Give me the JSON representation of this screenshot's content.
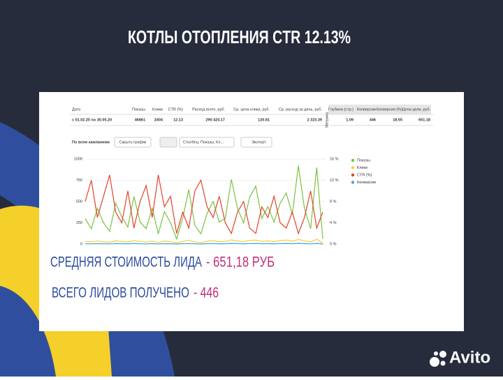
{
  "title": "КОТЛЫ ОТОПЛЕНИЯ CTR 12.13%",
  "table": {
    "date_header": "Дата",
    "headers": [
      "Показы",
      "Клики",
      "CTR (%)",
      "Расход всего, руб.",
      "Ср. цена клика, руб.",
      "Ср. расход за день, руб.",
      "Глубина (стр.)",
      "Конверсии",
      "Конверсия (%)",
      "Цена цели, руб."
    ],
    "metrika_header": "Метрика",
    "date": "с 01.02.20 по 30.05.20",
    "row": [
      "46861",
      "2404",
      "12.13",
      "290 424.17",
      "120.81",
      "2 323.39",
      "1.09",
      "446",
      "18.55",
      "651.18"
    ]
  },
  "toolbar": {
    "scope": "По всем кампаниям",
    "hide_chart": "Скрыть график",
    "columns": "Столбец: Показы, Кл...",
    "export": "Экспорт"
  },
  "chart_data": {
    "type": "line",
    "ylim": [
      0,
      1000
    ],
    "yticks": [
      0,
      250,
      500,
      750,
      1000
    ],
    "y2lim": [
      0,
      16
    ],
    "y2ticks": [
      {
        "value": 0,
        "label": "0 %"
      },
      {
        "value": 4,
        "label": "4 %"
      },
      {
        "value": 8,
        "label": "8 %"
      },
      {
        "value": 12,
        "label": "12 %"
      },
      {
        "value": 16,
        "label": "16 %"
      }
    ],
    "legend": "right",
    "grid": true,
    "series": [
      {
        "name": "Показы",
        "color": "#7cc242",
        "values": [
          300,
          180,
          420,
          250,
          150,
          480,
          320,
          200,
          560,
          260,
          180,
          420,
          120,
          380,
          250,
          60,
          300,
          640,
          220,
          120,
          360,
          500,
          260,
          300,
          760,
          420,
          250,
          550,
          680,
          300,
          440,
          260,
          480,
          600,
          350,
          920,
          420,
          180,
          900,
          60
        ]
      },
      {
        "name": "Клики",
        "color": "#f2cf3a",
        "values": [
          30,
          25,
          35,
          28,
          20,
          38,
          30,
          24,
          40,
          30,
          22,
          36,
          18,
          34,
          28,
          12,
          30,
          44,
          26,
          18,
          32,
          40,
          28,
          30,
          48,
          36,
          28,
          42,
          46,
          30,
          38,
          28,
          40,
          46,
          34,
          54,
          38,
          24,
          56,
          14
        ]
      },
      {
        "name": "CTR (%)",
        "color": "#e0442b",
        "axis": "y2",
        "values": [
          8,
          12,
          5,
          9,
          13,
          6,
          4,
          10,
          3,
          8,
          11,
          5,
          13,
          7,
          9,
          2,
          6,
          3,
          10,
          12,
          7,
          5,
          9,
          4,
          2,
          6,
          8,
          3,
          2,
          7,
          5,
          9,
          4,
          3,
          6,
          2,
          5,
          10,
          3,
          6
        ]
      },
      {
        "name": "Конверсии",
        "color": "#4ba3d9",
        "values": [
          4,
          2,
          5,
          3,
          2,
          6,
          4,
          3,
          7,
          3,
          2,
          5,
          1,
          4,
          3,
          0,
          4,
          6,
          3,
          1,
          4,
          6,
          3,
          4,
          8,
          5,
          3,
          6,
          7,
          4,
          5,
          3,
          6,
          7,
          4,
          9,
          5,
          2,
          8,
          1
        ]
      }
    ]
  },
  "summary": [
    {
      "label": "СРЕДНЯЯ СТОИМОСТЬ ЛИДА",
      "value": "- 651,18 РУБ"
    },
    {
      "label": "ВСЕГО ЛИДОВ ПОЛУЧЕНО",
      "value": "- 446"
    }
  ],
  "logo": "Avito"
}
